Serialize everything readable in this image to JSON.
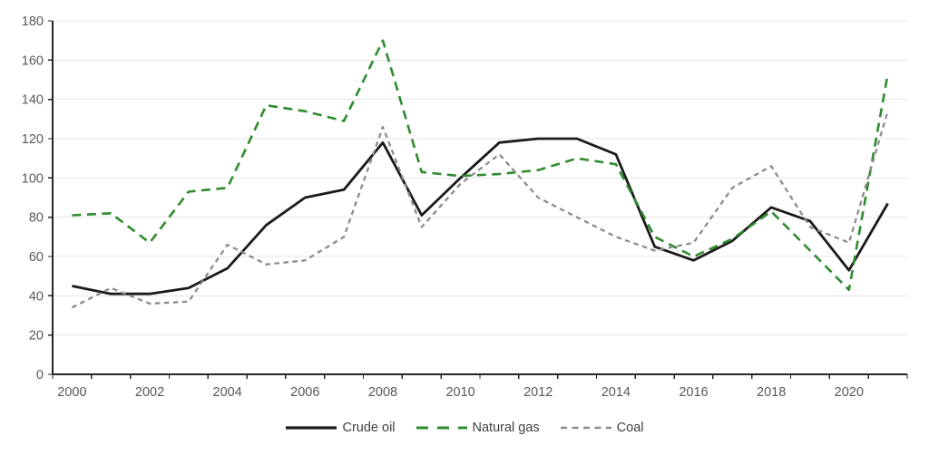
{
  "chart_data": {
    "type": "line",
    "title": "",
    "xlabel": "",
    "ylabel": "",
    "categories": [
      2000,
      2001,
      2002,
      2003,
      2004,
      2005,
      2006,
      2007,
      2008,
      2009,
      2010,
      2011,
      2012,
      2013,
      2014,
      2015,
      2016,
      2017,
      2018,
      2019,
      2020,
      2021
    ],
    "series": [
      {
        "name": "Crude oil",
        "color": "#1a1a1a",
        "dash": "solid",
        "values": [
          45,
          41,
          41,
          44,
          54,
          76,
          90,
          94,
          118,
          81,
          100,
          118,
          120,
          120,
          112,
          65,
          58,
          68,
          85,
          78,
          53,
          87
        ]
      },
      {
        "name": "Natural gas",
        "color": "#2e8b2e",
        "dash": "long-dash",
        "values": [
          81,
          82,
          67,
          93,
          95,
          137,
          134,
          129,
          170,
          103,
          101,
          102,
          104,
          110,
          107,
          70,
          60,
          69,
          83,
          63,
          43,
          153
        ]
      },
      {
        "name": "Coal",
        "color": "#8c8c8c",
        "dash": "short-dash",
        "values": [
          34,
          44,
          36,
          37,
          66,
          56,
          58,
          70,
          126,
          75,
          97,
          112,
          90,
          80,
          70,
          63,
          67,
          95,
          106,
          75,
          67,
          134
        ]
      }
    ],
    "ylim": [
      0,
      180
    ],
    "ytick_step": 20,
    "y_tick_labels": [
      "0",
      "20",
      "40",
      "60",
      "80",
      "100",
      "120",
      "140",
      "160",
      "180"
    ],
    "x_tick_labels": [
      "2000",
      "2002",
      "2004",
      "2006",
      "2008",
      "2010",
      "2012",
      "2014",
      "2016",
      "2018",
      "2020"
    ],
    "grid": true,
    "legend_position": "bottom",
    "legend": [
      "Crude oil",
      "Natural gas",
      "Coal"
    ]
  },
  "colors": {
    "background": "#ffffff",
    "gridline": "#e6e6e6",
    "axis": "#262626",
    "tick_text": "#595959",
    "legend_text": "#3f3f3f"
  }
}
